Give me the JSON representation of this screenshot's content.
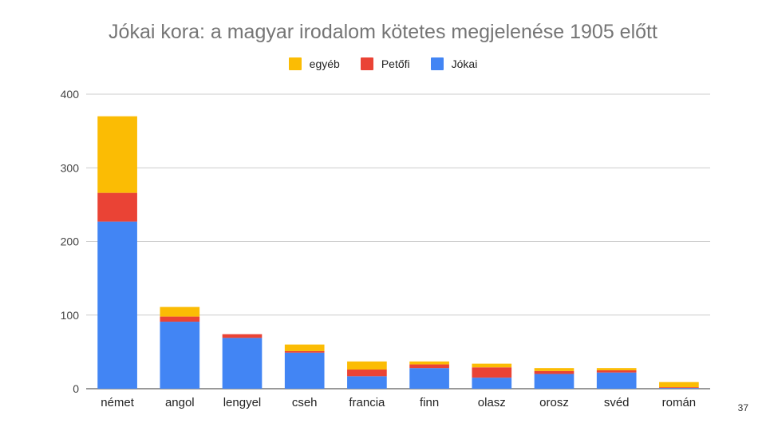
{
  "slide": {
    "page_number": "37"
  },
  "chart_data": {
    "type": "bar",
    "stacked": true,
    "title": "Jókai kora: a magyar irodalom kötetes megjelenése 1905 előtt",
    "xlabel": "",
    "ylabel": "",
    "categories": [
      "német",
      "angol",
      "lengyel",
      "cseh",
      "francia",
      "finn",
      "olasz",
      "orosz",
      "svéd",
      "román"
    ],
    "series": [
      {
        "name": "Jókai",
        "color": "#4285f4",
        "values": [
          227,
          91,
          69,
          49,
          17,
          28,
          15,
          20,
          22,
          1
        ]
      },
      {
        "name": "Petőfi",
        "color": "#ea4335",
        "values": [
          39,
          7,
          5,
          2,
          9,
          5,
          14,
          4,
          3,
          1
        ]
      },
      {
        "name": "egyéb",
        "color": "#fbbc04",
        "values": [
          104,
          13,
          0,
          9,
          11,
          4,
          5,
          4,
          3,
          7
        ]
      }
    ],
    "legend_order": [
      "egyéb",
      "Petőfi",
      "Jókai"
    ],
    "legend_position": "top-center",
    "ylim": [
      0,
      400
    ],
    "yticks": [
      0,
      100,
      200,
      300,
      400
    ],
    "grid": true
  }
}
